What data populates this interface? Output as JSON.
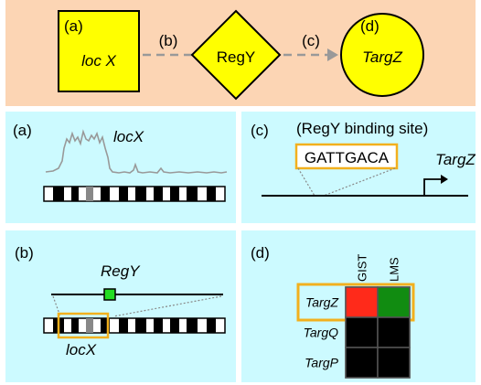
{
  "top": {
    "node_a": {
      "tag": "(a)",
      "label": "loc X"
    },
    "edge_b": "(b)",
    "node_reg": "RegY",
    "edge_c": "(c)",
    "node_d": {
      "tag": "(d)",
      "label": "TargZ"
    }
  },
  "panel_a": {
    "tag": "(a)",
    "label": "locX"
  },
  "panel_b": {
    "tag": "(b)",
    "reg_label": "RegY",
    "locus_label": "locX"
  },
  "panel_c": {
    "tag": "(c)",
    "site_caption": "(RegY binding site)",
    "sequence": "GATTGACA",
    "gene_label": "TargZ"
  },
  "panel_d": {
    "tag": "(d)",
    "columns": [
      "GIST",
      "LMS"
    ],
    "rows": [
      {
        "label": "TargZ",
        "cells": [
          "#ff2a1a",
          "#118c11"
        ],
        "highlight": true
      },
      {
        "label": "TargQ",
        "cells": [
          "#000000",
          "#000000"
        ],
        "highlight": false
      },
      {
        "label": "TargP",
        "cells": [
          "#000000",
          "#000000"
        ],
        "highlight": false
      }
    ]
  },
  "colors": {
    "peach": "#fcd5b4",
    "cyan": "#ccfaff",
    "yellow": "#ffff00",
    "orange": "#f2b01e",
    "marker_green": "#22dd22"
  }
}
